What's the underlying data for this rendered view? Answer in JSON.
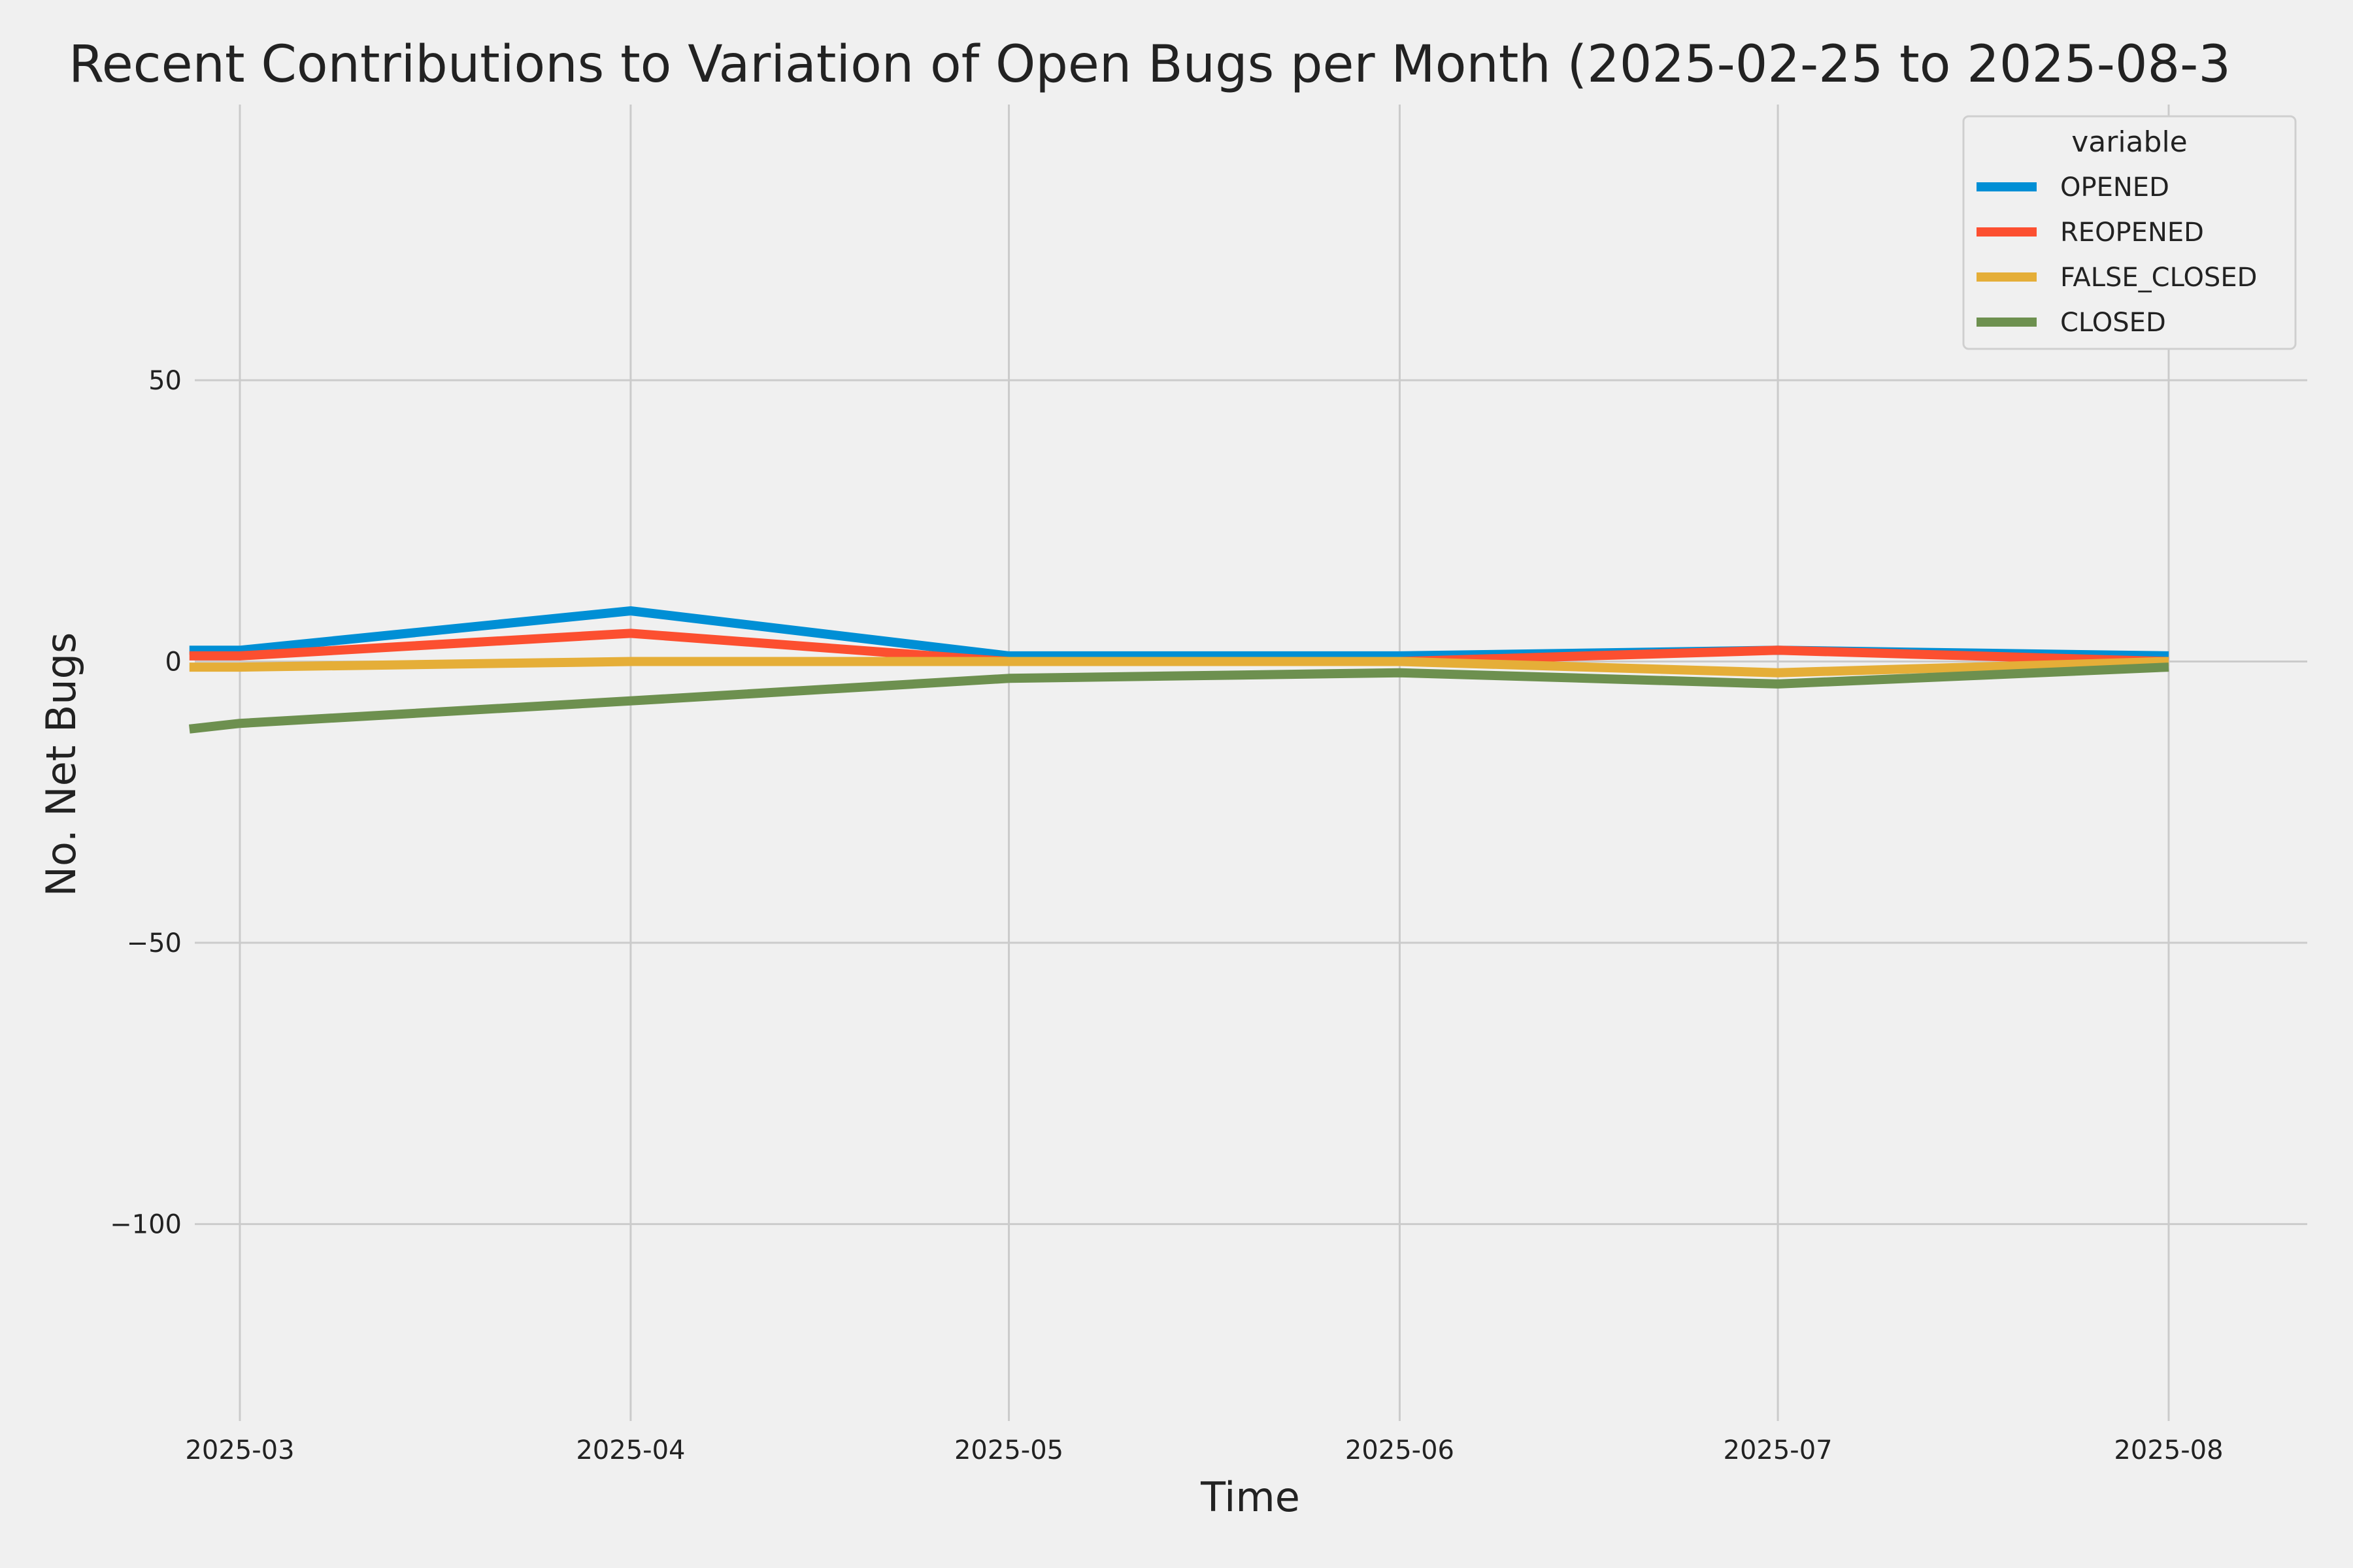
{
  "chart_data": {
    "type": "line",
    "title": "Recent Contributions to Variation of Open Bugs per Month (2025-02-25 to 2025-08-3",
    "xlabel": "Time",
    "ylabel": "No. Net Bugs",
    "x": [
      "2025-02-25",
      "2025-03-01",
      "2025-04-01",
      "2025-05-01",
      "2025-06-01",
      "2025-07-01",
      "2025-08-01"
    ],
    "x_ticks": [
      "2025-03",
      "2025-04",
      "2025-05",
      "2025-06",
      "2025-07",
      "2025-08"
    ],
    "y_ticks": [
      50,
      0,
      -50,
      -100
    ],
    "y_tick_labels": [
      "50",
      "0",
      "−50",
      "−100"
    ],
    "ylim": [
      -135,
      99
    ],
    "grid": true,
    "legend": {
      "title": "variable",
      "position": "top-right"
    },
    "series": [
      {
        "name": "OPENED",
        "color": "#008fd5",
        "values": [
          2,
          2,
          9,
          1,
          1,
          2,
          1
        ]
      },
      {
        "name": "REOPENED",
        "color": "#fc4f30",
        "values": [
          1,
          1,
          5,
          0,
          0,
          2,
          0
        ]
      },
      {
        "name": "FALSE_CLOSED",
        "color": "#e5ae38",
        "values": [
          -1,
          -1,
          0,
          0,
          0,
          -2,
          0
        ]
      },
      {
        "name": "CLOSED",
        "color": "#6d904f",
        "values": [
          -12,
          -11,
          -7,
          -3,
          -2,
          -4,
          -1
        ]
      }
    ]
  }
}
